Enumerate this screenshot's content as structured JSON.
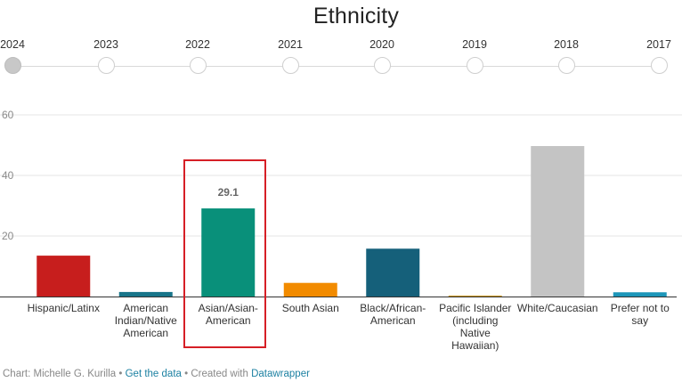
{
  "title": "Ethnicity",
  "timeline": {
    "years": [
      "2024",
      "2023",
      "2022",
      "2021",
      "2020",
      "2019",
      "2018",
      "2017"
    ],
    "selected": "2024"
  },
  "chart_data": {
    "type": "bar",
    "categories": [
      "Hispanic/Latinx",
      "American Indian/Native American",
      "Asian/Asian-American",
      "South Asian",
      "Black/African-American",
      "Pacific Islander (including Native Hawaiian)",
      "White/Caucasian",
      "Prefer not to say"
    ],
    "category_lines": [
      [
        "Hispanic/Latinx"
      ],
      [
        "American",
        "Indian/Native",
        "American"
      ],
      [
        "Asian/Asian-",
        "American"
      ],
      [
        "South Asian"
      ],
      [
        "Black/African-",
        "American"
      ],
      [
        "Pacific Islander",
        "(including",
        "Native",
        "Hawaiian)"
      ],
      [
        "White/Caucasian"
      ],
      [
        "Prefer not to",
        "say"
      ]
    ],
    "values": [
      13.5,
      1.5,
      29.1,
      4.5,
      15.8,
      0.3,
      49.7,
      1.4
    ],
    "colors": [
      "#c71e1d",
      "#18758a",
      "#09907a",
      "#f28b00",
      "#15607a",
      "#c9941c",
      "#c4c4c4",
      "#1d96b9"
    ],
    "highlighted_index": 2,
    "data_labels": [
      {
        "index": 2,
        "text": "29.1"
      }
    ],
    "ylim": [
      0,
      60
    ],
    "yticks": [
      0,
      20,
      40,
      60
    ],
    "ytick_labels": [
      "",
      "20",
      "40",
      "60"
    ],
    "grid": true,
    "xlabel": "",
    "ylabel": ""
  },
  "footer": {
    "credit": "Chart: Michelle G. Kurilla",
    "sep1": " • ",
    "get_data": "Get the data",
    "sep2": " • Created with ",
    "tool": "Datawrapper"
  }
}
